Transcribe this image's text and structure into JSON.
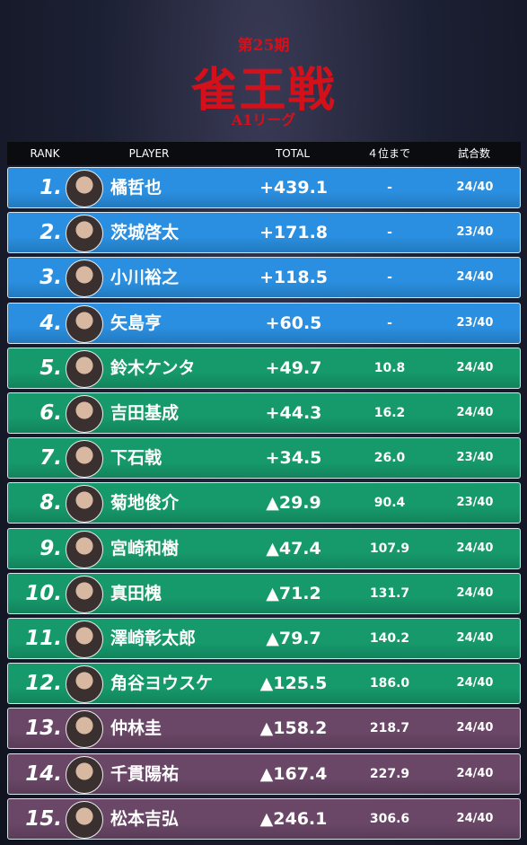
{
  "header": {
    "edition": "第25期",
    "title": "雀王戦",
    "league": "A1リーグ"
  },
  "table": {
    "columns": [
      "RANK",
      "PLAYER",
      "TOTAL",
      "４位まで",
      "試合数"
    ],
    "rows": [
      {
        "rank": "1.",
        "player": "橘哲也",
        "total": "+439.1",
        "to4th": "-",
        "games": "24/40",
        "color": "#2a8fe0"
      },
      {
        "rank": "2.",
        "player": "茨城啓太",
        "total": "+171.8",
        "to4th": "-",
        "games": "23/40",
        "color": "#2a8fe0"
      },
      {
        "rank": "3.",
        "player": "小川裕之",
        "total": "+118.5",
        "to4th": "-",
        "games": "24/40",
        "color": "#2a8fe0"
      },
      {
        "rank": "4.",
        "player": "矢島亨",
        "total": "+60.5",
        "to4th": "-",
        "games": "23/40",
        "color": "#2a8fe0"
      },
      {
        "rank": "5.",
        "player": "鈴木ケンタ",
        "total": "+49.7",
        "to4th": "10.8",
        "games": "24/40",
        "color": "#169a6c"
      },
      {
        "rank": "6.",
        "player": "吉田基成",
        "total": "+44.3",
        "to4th": "16.2",
        "games": "24/40",
        "color": "#169a6c"
      },
      {
        "rank": "7.",
        "player": "下石戟",
        "total": "+34.5",
        "to4th": "26.0",
        "games": "23/40",
        "color": "#169a6c"
      },
      {
        "rank": "8.",
        "player": "菊地俊介",
        "total": "▲29.9",
        "to4th": "90.4",
        "games": "23/40",
        "color": "#169a6c"
      },
      {
        "rank": "9.",
        "player": "宮崎和樹",
        "total": "▲47.4",
        "to4th": "107.9",
        "games": "24/40",
        "color": "#169a6c"
      },
      {
        "rank": "10.",
        "player": "真田槐",
        "total": "▲71.2",
        "to4th": "131.7",
        "games": "24/40",
        "color": "#169a6c"
      },
      {
        "rank": "11.",
        "player": "澤崎彰太郎",
        "total": "▲79.7",
        "to4th": "140.2",
        "games": "24/40",
        "color": "#169a6c"
      },
      {
        "rank": "12.",
        "player": "角谷ヨウスケ",
        "total": "▲125.5",
        "to4th": "186.0",
        "games": "24/40",
        "color": "#169a6c"
      },
      {
        "rank": "13.",
        "player": "仲林圭",
        "total": "▲158.2",
        "to4th": "218.7",
        "games": "24/40",
        "color": "#6a4767"
      },
      {
        "rank": "14.",
        "player": "千貫陽祐",
        "total": "▲167.4",
        "to4th": "227.9",
        "games": "24/40",
        "color": "#6a4767"
      },
      {
        "rank": "15.",
        "player": "松本吉弘",
        "total": "▲246.1",
        "to4th": "306.6",
        "games": "24/40",
        "color": "#6a4767"
      }
    ]
  }
}
